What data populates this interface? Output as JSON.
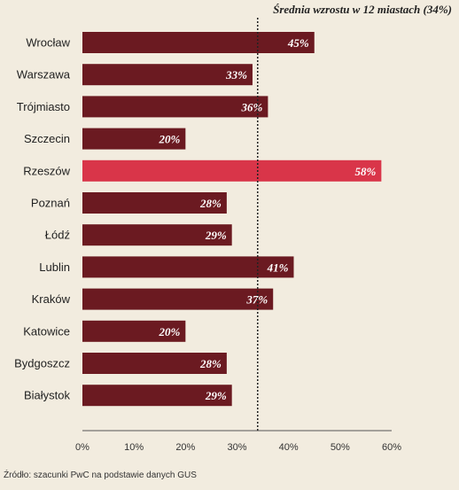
{
  "chart_data": {
    "type": "bar",
    "orientation": "horizontal",
    "categories": [
      "Wrocław",
      "Warszawa",
      "Trójmiasto",
      "Szczecin",
      "Rzeszów",
      "Poznań",
      "Łódź",
      "Lublin",
      "Kraków",
      "Katowice",
      "Bydgoszcz",
      "Białystok"
    ],
    "values": [
      45,
      33,
      36,
      20,
      58,
      28,
      29,
      41,
      37,
      20,
      28,
      29
    ],
    "data_labels": [
      "45%",
      "33%",
      "36%",
      "20%",
      "58%",
      "28%",
      "29%",
      "41%",
      "37%",
      "20%",
      "28%",
      "29%"
    ],
    "xlim": [
      0,
      60
    ],
    "xticks": [
      0,
      10,
      20,
      30,
      40,
      50,
      60
    ],
    "xtick_labels": [
      "0%",
      "10%",
      "20%",
      "30%",
      "40%",
      "50%",
      "60%"
    ],
    "average": {
      "value": 34,
      "label": "Średnia wzrostu w 12 miastach (34%)"
    },
    "grid": false,
    "colors": {
      "bar": "#6b1a21",
      "highlight": "#d93549",
      "background": "#f2ecdf",
      "average_line": "#222222"
    },
    "highlight_category": "Rzeszów"
  },
  "source": "Źródło: szacunki PwC na podstawie danych GUS"
}
